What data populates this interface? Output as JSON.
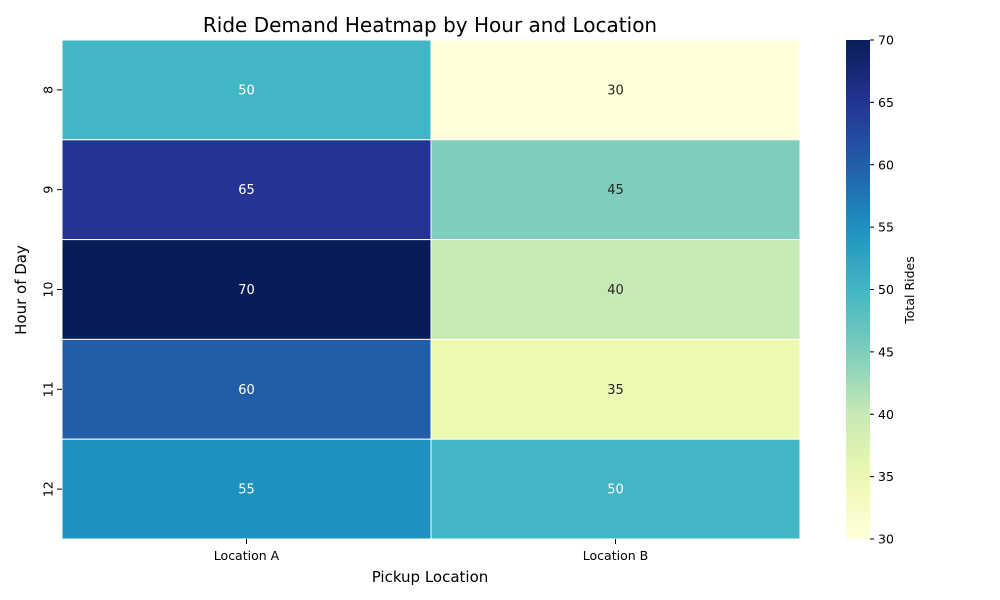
{
  "chart_data": {
    "type": "heatmap",
    "title": "Ride Demand Heatmap by Hour and Location",
    "xlabel": "Pickup Location",
    "ylabel": "Hour of Day",
    "x_categories": [
      "Location A",
      "Location B"
    ],
    "y_categories": [
      "8",
      "9",
      "10",
      "11",
      "12"
    ],
    "values": [
      [
        50,
        30
      ],
      [
        65,
        45
      ],
      [
        70,
        40
      ],
      [
        60,
        35
      ],
      [
        55,
        50
      ]
    ],
    "colorbar": {
      "label": "Total Rides",
      "range": [
        30,
        70
      ],
      "ticks": [
        "30",
        "35",
        "40",
        "45",
        "50",
        "55",
        "60",
        "65",
        "70"
      ],
      "colormap": "YlGnBu"
    },
    "grid": false
  }
}
